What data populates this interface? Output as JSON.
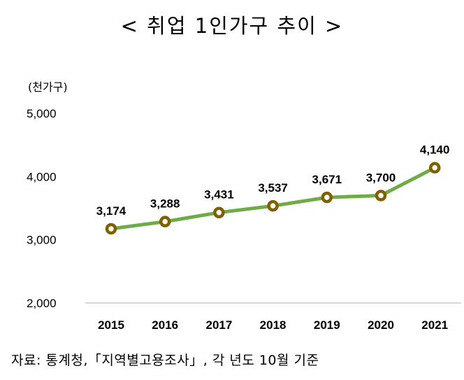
{
  "title": "< 취업 1인가구 추이 >",
  "source": "자료: 통계청,「지역별고용조사」, 각 년도 10월 기준",
  "colors": {
    "line": "#6fac46",
    "marker_ring": "#7f6000",
    "marker_fill": "#ffffff",
    "axis": "#bfbfbf"
  },
  "chart_data": {
    "type": "line",
    "title": "< 취업 1인가구 추이 >",
    "ylabel": "(천가구)",
    "xlabel": "",
    "categories": [
      "2015",
      "2016",
      "2017",
      "2018",
      "2019",
      "2020",
      "2021"
    ],
    "values": [
      3174,
      3288,
      3431,
      3537,
      3671,
      3700,
      4140
    ],
    "value_labels": [
      "3,174",
      "3,288",
      "3,431",
      "3,537",
      "3,671",
      "3,700",
      "4,140"
    ],
    "ylim": [
      2000,
      5000
    ],
    "yticks": [
      2000,
      3000,
      4000,
      5000
    ],
    "ytick_labels": [
      "2,000",
      "3,000",
      "4,000",
      "5,000"
    ],
    "grid": false,
    "legend": "none"
  }
}
